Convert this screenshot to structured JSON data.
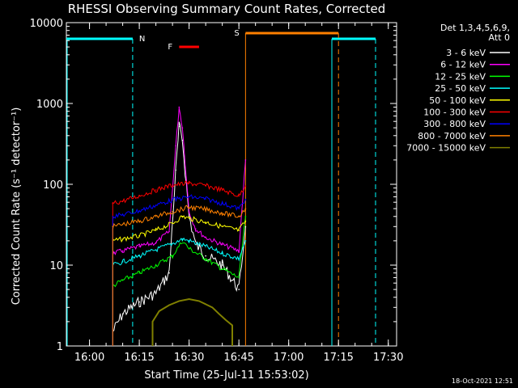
{
  "chart_data": {
    "type": "line",
    "title": "RHESSI Observing Summary Count Rates, Corrected",
    "xlabel": "Start Time (25-Jul-11 15:53:02)",
    "ylabel": "Corrected Count Rate (s⁻¹ detector⁻¹)",
    "y_scale": "log",
    "ylim": [
      1,
      10000
    ],
    "xlim": [
      "15:53:02",
      "17:32:30"
    ],
    "x_ticks": [
      "16:00",
      "16:15",
      "16:30",
      "16:45",
      "17:00",
      "17:15",
      "17:30"
    ],
    "y_ticks": [
      "1",
      "10",
      "100",
      "1000",
      "10000"
    ],
    "legend_header": [
      "Det 1,3,4,5,6,9,",
      "Att 0"
    ],
    "legend_position": "right",
    "series": [
      {
        "name": "3 - 6 keV",
        "color": "#ffffff",
        "x": [
          "16:07",
          "16:10",
          "16:15",
          "16:20",
          "16:24",
          "16:26",
          "16:27",
          "16:28",
          "16:30",
          "16:32",
          "16:35",
          "16:40",
          "16:45",
          "16:47"
        ],
        "values": [
          1.5,
          2.5,
          3.5,
          4.5,
          8,
          150,
          520,
          350,
          40,
          18,
          13,
          10,
          5,
          30
        ]
      },
      {
        "name": "6 - 12 keV",
        "color": "#ff00ff",
        "x": [
          "16:07",
          "16:10",
          "16:15",
          "16:20",
          "16:24",
          "16:26",
          "16:27",
          "16:28",
          "16:30",
          "16:32",
          "16:35",
          "16:40",
          "16:45",
          "16:47"
        ],
        "values": [
          14,
          15,
          17,
          19,
          26,
          300,
          900,
          500,
          45,
          28,
          22,
          18,
          15,
          200
        ]
      },
      {
        "name": "12 - 25 keV",
        "color": "#00ff00",
        "x": [
          "16:07",
          "16:10",
          "16:15",
          "16:20",
          "16:25",
          "16:28",
          "16:30",
          "16:35",
          "16:40",
          "16:45",
          "16:47"
        ],
        "values": [
          5.5,
          6.5,
          8,
          10,
          13,
          20,
          16,
          12,
          9,
          7,
          40
        ]
      },
      {
        "name": "25 - 50 keV",
        "color": "#00ffff",
        "x": [
          "16:07",
          "16:10",
          "16:15",
          "16:20",
          "16:25",
          "16:28",
          "16:30",
          "16:35",
          "16:40",
          "16:45",
          "16:47"
        ],
        "values": [
          10,
          11,
          13,
          15.5,
          18.5,
          21,
          20,
          17,
          14,
          12,
          20
        ]
      },
      {
        "name": "50 - 100 keV",
        "color": "#ffff00",
        "x": [
          "16:07",
          "16:10",
          "16:15",
          "16:20",
          "16:25",
          "16:28",
          "16:30",
          "16:35",
          "16:40",
          "16:45",
          "16:47"
        ],
        "values": [
          20,
          21,
          23,
          27,
          33,
          40,
          38,
          34,
          30,
          27,
          35
        ]
      },
      {
        "name": "100 - 300 keV",
        "color": "#ff0000",
        "x": [
          "16:07",
          "16:10",
          "16:15",
          "16:20",
          "16:25",
          "16:30",
          "16:35",
          "16:40",
          "16:45",
          "16:47"
        ],
        "values": [
          58,
          62,
          72,
          85,
          98,
          103,
          96,
          85,
          72,
          95
        ]
      },
      {
        "name": "300 - 800 keV",
        "color": "#0000ff",
        "x": [
          "16:07",
          "16:10",
          "16:15",
          "16:20",
          "16:25",
          "16:30",
          "16:35",
          "16:40",
          "16:45",
          "16:47"
        ],
        "values": [
          40,
          42,
          47,
          55,
          64,
          70,
          66,
          58,
          50,
          65
        ]
      },
      {
        "name": "800 - 7000 keV",
        "color": "#ff8000",
        "x": [
          "16:07",
          "16:10",
          "16:15",
          "16:20",
          "16:25",
          "16:30",
          "16:35",
          "16:40",
          "16:45",
          "16:47"
        ],
        "values": [
          30,
          32,
          35,
          40,
          46,
          52,
          49,
          44,
          40,
          50
        ]
      },
      {
        "name": "7000 - 15000 keV",
        "color": "#808000",
        "x": [
          "16:19",
          "16:21",
          "16:24",
          "16:27",
          "16:30",
          "16:33",
          "16:37",
          "16:39",
          "16:41",
          "16:43"
        ],
        "values": [
          2.0,
          2.7,
          3.2,
          3.6,
          3.8,
          3.6,
          3.0,
          2.5,
          2.1,
          1.8
        ]
      }
    ],
    "annotations": [
      {
        "label": "N",
        "type": "night",
        "color": "#00ffff",
        "start": "16:13",
        "end": "17:13"
      },
      {
        "label": "F",
        "type": "flare",
        "color": "#ff0000",
        "start": "16:27",
        "end": "16:33"
      },
      {
        "label": "S",
        "type": "saa",
        "color": "#ff8000",
        "start": "16:47",
        "end": "17:15"
      }
    ],
    "footnote": "18-Oct-2021 12:51"
  }
}
